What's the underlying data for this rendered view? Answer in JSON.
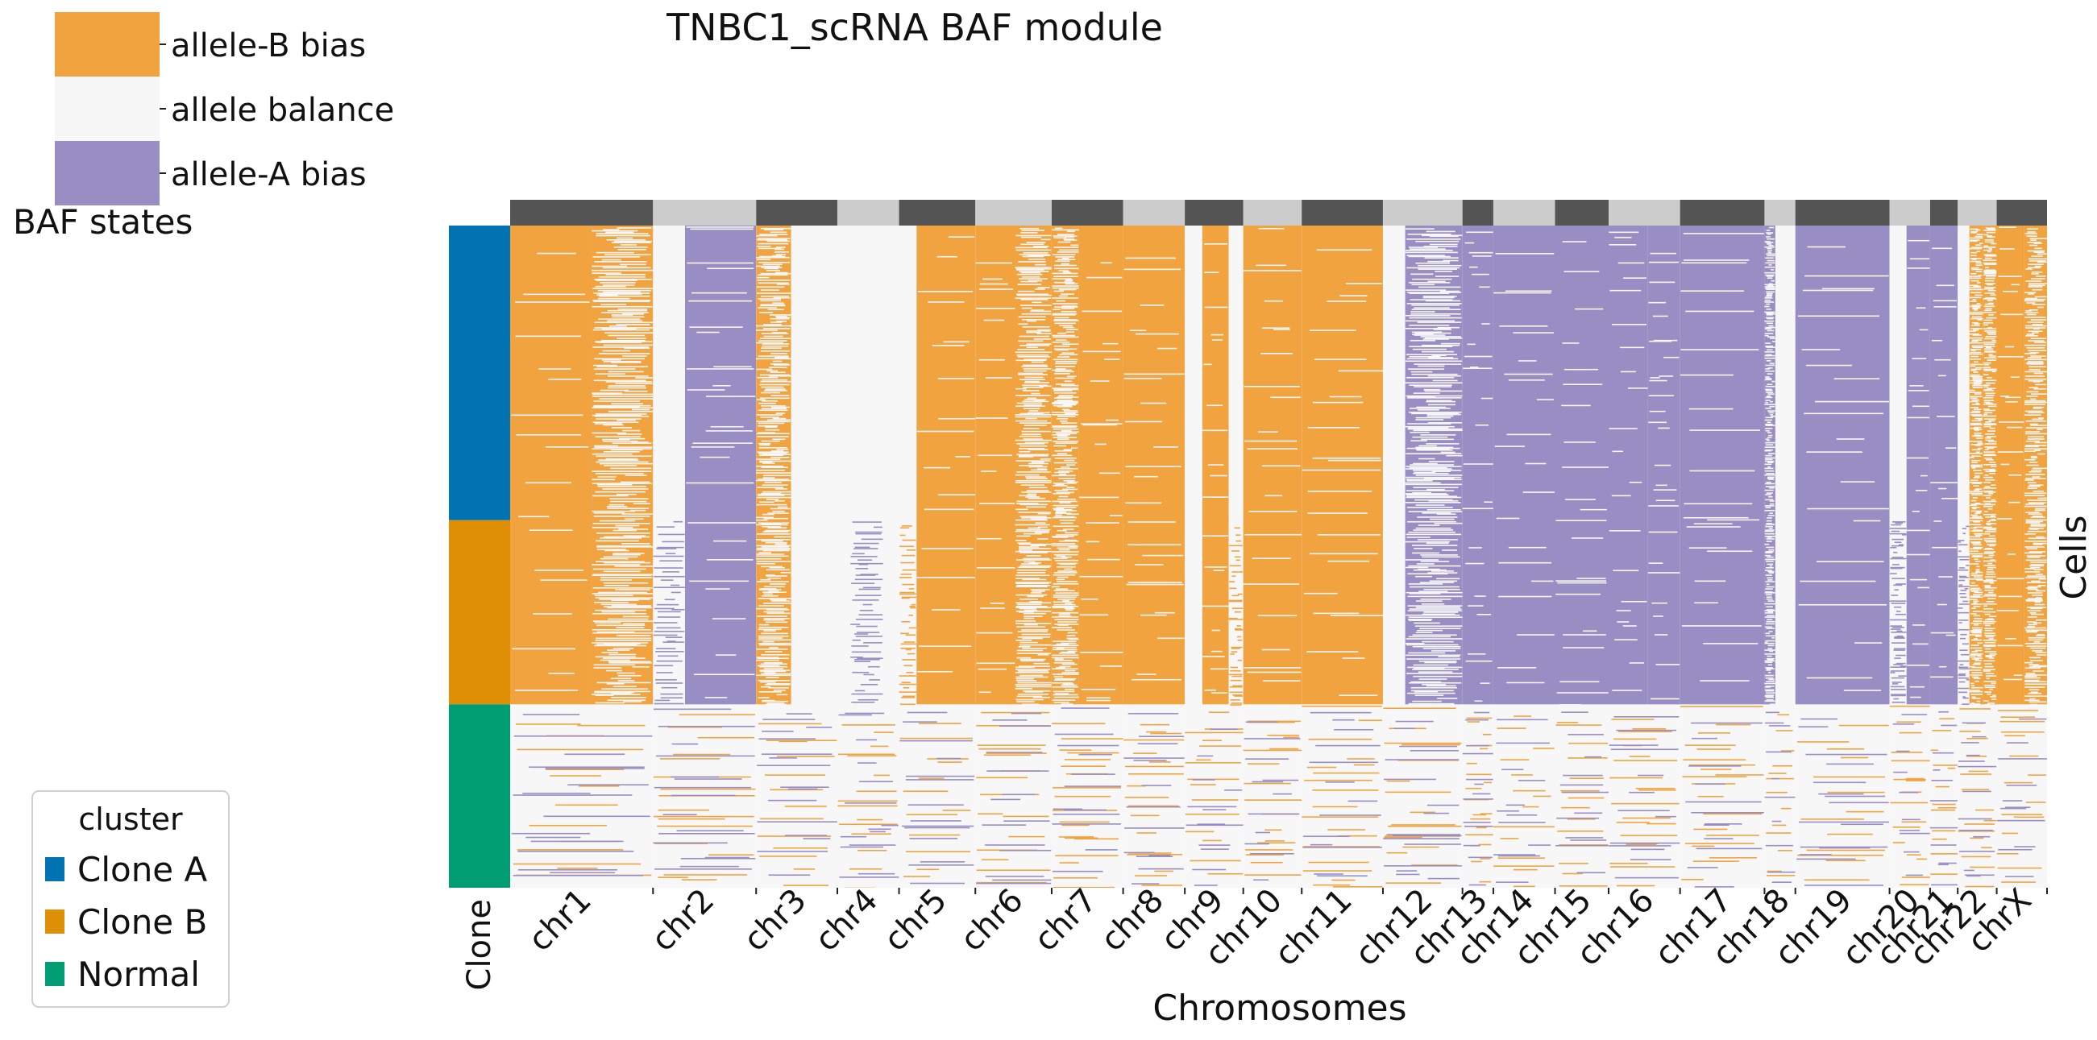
{
  "chart_data": {
    "type": "heatmap",
    "title": "TNBC1_scRNA BAF module",
    "xlabel": "Chromosomes",
    "ylabel": "Cells",
    "clone_label": "Clone",
    "chromosomes": [
      {
        "name": "chr1",
        "bands": [
          [
            0.0,
            0.57,
            "B"
          ],
          [
            0.57,
            1.0,
            "Bs"
          ]
        ]
      },
      {
        "name": "chr2",
        "bands": [
          [
            0.0,
            0.31,
            "Nbt"
          ],
          [
            0.31,
            1.0,
            "A"
          ]
        ]
      },
      {
        "name": "chr3",
        "bands": [
          [
            0.0,
            0.43,
            "Bs"
          ],
          [
            0.43,
            1.0,
            "N"
          ]
        ]
      },
      {
        "name": "chr4",
        "bands": [
          [
            0.0,
            0.21,
            "N"
          ],
          [
            0.21,
            0.74,
            "Abl"
          ],
          [
            0.74,
            1.0,
            "N"
          ]
        ]
      },
      {
        "name": "chr5",
        "bands": [
          [
            0.0,
            0.23,
            "Nbt"
          ],
          [
            0.23,
            1.0,
            "B"
          ]
        ]
      },
      {
        "name": "chr6",
        "bands": [
          [
            0.0,
            0.52,
            "B"
          ],
          [
            0.52,
            1.0,
            "Bs"
          ]
        ]
      },
      {
        "name": "chr7",
        "bands": [
          [
            0.0,
            0.38,
            "Bs"
          ],
          [
            0.38,
            1.0,
            "Bt"
          ]
        ]
      },
      {
        "name": "chr8",
        "bands": [
          [
            0.0,
            1.0,
            "B"
          ]
        ]
      },
      {
        "name": "chr9",
        "bands": [
          [
            0.0,
            0.3,
            "N"
          ],
          [
            0.3,
            0.75,
            "Bt"
          ],
          [
            0.75,
            1.0,
            "Nbt"
          ]
        ]
      },
      {
        "name": "chr10",
        "bands": [
          [
            0.0,
            1.0,
            "B"
          ]
        ]
      },
      {
        "name": "chr11",
        "bands": [
          [
            0.0,
            1.0,
            "B"
          ]
        ]
      },
      {
        "name": "chr12",
        "bands": [
          [
            0.0,
            0.28,
            "N"
          ],
          [
            0.28,
            1.0,
            "As"
          ]
        ]
      },
      {
        "name": "chr13",
        "bands": [
          [
            0.0,
            1.0,
            "A"
          ]
        ]
      },
      {
        "name": "chr14",
        "bands": [
          [
            0.0,
            1.0,
            "A"
          ]
        ]
      },
      {
        "name": "chr15",
        "bands": [
          [
            0.0,
            1.0,
            "At"
          ]
        ]
      },
      {
        "name": "chr16",
        "bands": [
          [
            0.0,
            0.55,
            "At"
          ],
          [
            0.55,
            1.0,
            "At"
          ]
        ]
      },
      {
        "name": "chr17",
        "bands": [
          [
            0.0,
            1.0,
            "A"
          ]
        ]
      },
      {
        "name": "chr18",
        "bands": [
          [
            0.0,
            0.35,
            "As"
          ],
          [
            0.35,
            1.0,
            "N"
          ]
        ]
      },
      {
        "name": "chr19",
        "bands": [
          [
            0.0,
            1.0,
            "A"
          ]
        ]
      },
      {
        "name": "chr20",
        "bands": [
          [
            0.0,
            0.42,
            "Abl"
          ],
          [
            0.42,
            1.0,
            "A"
          ]
        ]
      },
      {
        "name": "chr21",
        "bands": [
          [
            0.0,
            1.0,
            "A"
          ]
        ]
      },
      {
        "name": "chr22",
        "bands": [
          [
            0.0,
            0.3,
            "Nb"
          ],
          [
            0.3,
            0.65,
            "Bs"
          ],
          [
            0.65,
            1.0,
            "Bs"
          ]
        ]
      },
      {
        "name": "chrX",
        "bands": [
          [
            0.0,
            0.55,
            "B"
          ],
          [
            0.55,
            1.0,
            "Bs"
          ]
        ]
      }
    ],
    "chrom_widths": [
      176,
      127,
      100,
      76,
      94,
      94,
      88,
      76,
      72,
      72,
      100,
      98,
      38,
      76,
      66,
      88,
      104,
      38,
      116,
      50,
      34,
      48,
      62
    ],
    "clusters": [
      {
        "name": "Clone A",
        "color": "#0173b2",
        "fraction": 0.445
      },
      {
        "name": "Clone B",
        "color": "#de8f05",
        "fraction": 0.278
      },
      {
        "name": "Normal",
        "color": "#029e73",
        "fraction": 0.277
      }
    ],
    "state_colors": {
      "allele-B bias": "#f1a340",
      "allele balance": "#f7f7f7",
      "allele-A bias": "#998ec3"
    },
    "chrom_bar_colors": [
      "#545454",
      "#cccccc"
    ],
    "grid": false
  },
  "baf_legend": {
    "title": "BAF states",
    "items": [
      {
        "label": "allele-B bias",
        "color": "#f1a340"
      },
      {
        "label": "allele balance",
        "color": "#f7f7f7"
      },
      {
        "label": "allele-A bias",
        "color": "#998ec3"
      }
    ]
  },
  "cluster_legend": {
    "title": "cluster",
    "items": [
      {
        "label": "Clone A",
        "color": "#0173b2"
      },
      {
        "label": "Clone B",
        "color": "#de8f05"
      },
      {
        "label": "Normal",
        "color": "#029e73"
      }
    ]
  }
}
